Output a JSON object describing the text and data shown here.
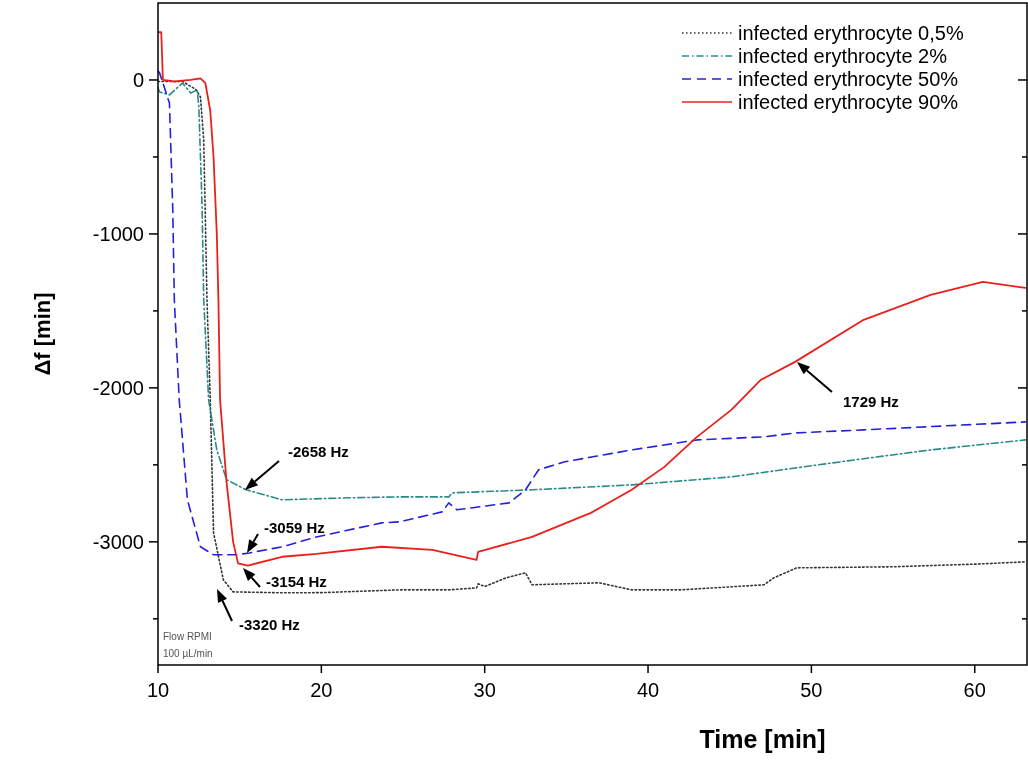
{
  "chart_data": {
    "type": "line",
    "xlabel": "Time [min]",
    "ylabel": "Δf [min]",
    "xlim": [
      10,
      63.2
    ],
    "ylim": [
      -3800,
      500
    ],
    "xticks": [
      10,
      20,
      30,
      40,
      50,
      60
    ],
    "yticks": [
      {
        "value": -3500,
        "label": null
      },
      -3000,
      {
        "value": -2500,
        "label": null
      },
      -2000,
      {
        "value": -1500,
        "label": null
      },
      -1000,
      {
        "value": -500,
        "label": null
      },
      0
    ],
    "legend": "top right",
    "grid": false,
    "annotations": [
      "-2658 Hz",
      "-3059 Hz",
      "-3154 Hz",
      "-3320 Hz",
      "1729 Hz",
      "Flow RPMI",
      "100 µL/min"
    ],
    "series": [
      {
        "name": "infected erythrocyte 0,5%",
        "color": "#333333",
        "line_style": "dotted",
        "x": [
          10,
          11.5,
          12.3,
          12.6,
          12.8,
          13,
          13.2,
          13.4,
          14,
          14.6,
          17.6,
          20,
          24.8,
          27.8,
          29.5,
          29.6,
          30,
          31.3,
          32.5,
          32.9,
          37,
          39,
          42,
          47.1,
          47.7,
          49.1,
          55,
          60,
          63.1
        ],
        "values": [
          -10,
          -10,
          -60,
          -110,
          -390,
          -1430,
          -2078,
          -2940,
          -3247,
          -3325,
          -3331,
          -3330,
          -3312,
          -3312,
          -3299,
          -3273,
          -3290,
          -3234,
          -3201,
          -3279,
          -3266,
          -3312,
          -3312,
          -3279,
          -3234,
          -3169,
          -3162,
          -3145,
          -3130
        ]
      },
      {
        "name": "infected erythrocyte 2%",
        "color": "#2a8a8a",
        "line_style": "dashdot",
        "x": [
          10,
          10.1,
          10.7,
          11.5,
          12,
          12.4,
          12.5,
          12.7,
          12.8,
          13.1,
          13.6,
          14.2,
          15.4,
          17.6,
          21.7,
          24.8,
          27.8,
          28,
          32.9,
          39,
          45.1,
          49.1,
          53.2,
          57.3,
          63.1
        ],
        "values": [
          -50,
          -78,
          -97,
          -20,
          -85,
          -65,
          -175,
          -825,
          -1430,
          -2078,
          -2403,
          -2597,
          -2662,
          -2727,
          -2714,
          -2708,
          -2708,
          -2682,
          -2662,
          -2630,
          -2578,
          -2519,
          -2460,
          -2403,
          -2338
        ]
      },
      {
        "name": "infected erythrocyte 50%",
        "color": "#2222dd",
        "line_style": "dashed",
        "x": [
          10,
          10.1,
          10.5,
          10.7,
          10.9,
          11,
          11.3,
          11.8,
          12.6,
          13.4,
          14.8,
          15.6,
          17.6,
          19.7,
          23.7,
          24.8,
          27.4,
          27.8,
          28.3,
          31.5,
          32.5,
          33.3,
          34.9,
          39,
          43,
          47.1,
          49.1,
          53.2,
          63.1
        ],
        "values": [
          60,
          45,
          -85,
          -150,
          -825,
          -1430,
          -2078,
          -2727,
          -3032,
          -3084,
          -3084,
          -3072,
          -3032,
          -2968,
          -2877,
          -2870,
          -2805,
          -2747,
          -2792,
          -2747,
          -2662,
          -2532,
          -2480,
          -2403,
          -2338,
          -2318,
          -2292,
          -2273,
          -2221
        ]
      },
      {
        "name": "infected erythrocyte 90%",
        "color": "#e8211c",
        "line_style": "solid",
        "x": [
          10,
          10.2,
          10.3,
          11,
          12,
          12.6,
          12.9,
          13.2,
          13.4,
          13.6,
          13.7,
          13.8,
          14.2,
          14.6,
          14.9,
          15.5,
          17.6,
          19.7,
          23.7,
          26.8,
          29.5,
          29.6,
          32.9,
          36.5,
          39,
          41,
          43,
          45.1,
          46.9,
          49,
          53.2,
          57.3,
          60.5,
          63.1
        ],
        "values": [
          310,
          310,
          0,
          -10,
          0,
          10,
          -20,
          -200,
          -500,
          -1000,
          -1430,
          -2078,
          -2617,
          -3000,
          -3140,
          -3154,
          -3097,
          -3078,
          -3032,
          -3052,
          -3117,
          -3065,
          -2968,
          -2812,
          -2662,
          -2513,
          -2318,
          -2143,
          -1948,
          -1831,
          -1558,
          -1396,
          -1312,
          -1351
        ]
      }
    ]
  }
}
